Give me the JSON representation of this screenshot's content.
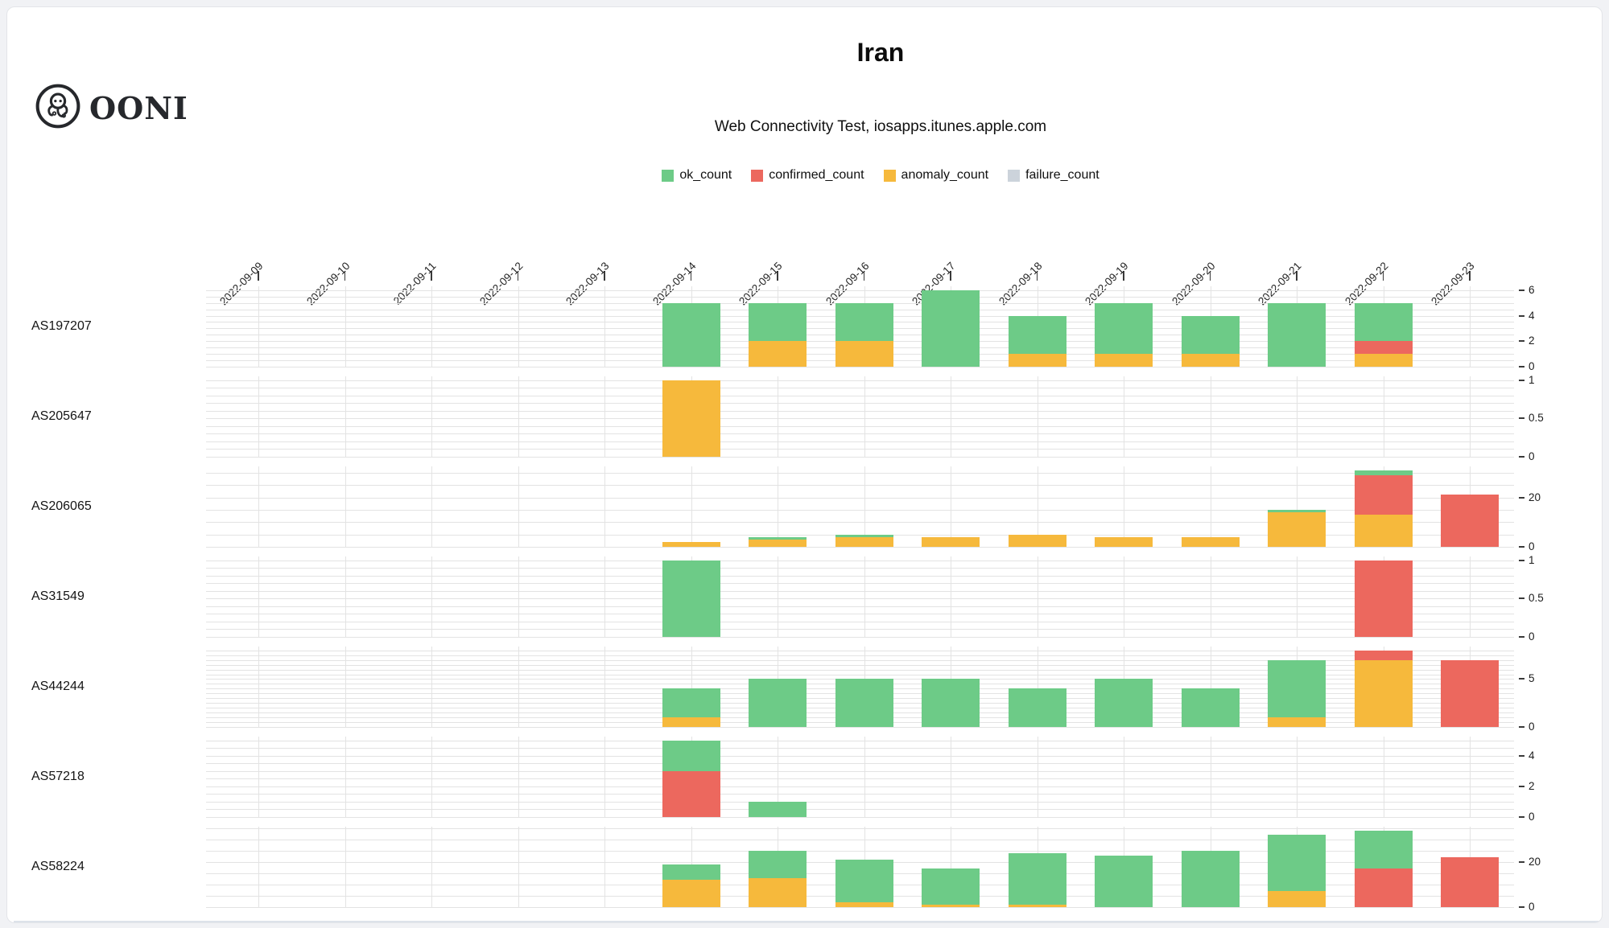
{
  "brand": {
    "logo_text": "OONI"
  },
  "chart_data": {
    "type": "bar",
    "stacked": true,
    "faceted": true,
    "title": "Iran",
    "subtitle": "Web Connectivity Test, iosapps.itunes.apple.com",
    "legend_position": "top-center",
    "grid": true,
    "colors": {
      "ok": "#6dcb87",
      "confirmed": "#ec685e",
      "anomaly": "#f6b93c",
      "failure": "#ccd3db"
    },
    "legend": [
      {
        "key": "ok",
        "label": "ok_count",
        "color": "#6dcb87"
      },
      {
        "key": "confirmed",
        "label": "confirmed_count",
        "color": "#ec685e"
      },
      {
        "key": "anomaly",
        "label": "anomaly_count",
        "color": "#f6b93c"
      },
      {
        "key": "failure",
        "label": "failure_count",
        "color": "#ccd3db"
      }
    ],
    "stack_order": [
      "anomaly",
      "confirmed",
      "ok",
      "failure"
    ],
    "x_categories": [
      "2022-09-09",
      "2022-09-10",
      "2022-09-11",
      "2022-09-12",
      "2022-09-13",
      "2022-09-14",
      "2022-09-15",
      "2022-09-16",
      "2022-09-17",
      "2022-09-18",
      "2022-09-19",
      "2022-09-20",
      "2022-09-21",
      "2022-09-22",
      "2022-09-23"
    ],
    "facets": [
      {
        "label": "AS197207",
        "y_ticks": [
          0,
          2,
          4,
          6
        ],
        "y_max": 6.3,
        "grid_step": 0.5,
        "bars": [
          {
            "date": "2022-09-14",
            "ok": 5
          },
          {
            "date": "2022-09-15",
            "anomaly": 2,
            "ok": 3
          },
          {
            "date": "2022-09-16",
            "anomaly": 2,
            "ok": 3
          },
          {
            "date": "2022-09-17",
            "ok": 6
          },
          {
            "date": "2022-09-18",
            "anomaly": 1,
            "ok": 3
          },
          {
            "date": "2022-09-19",
            "anomaly": 1,
            "ok": 4
          },
          {
            "date": "2022-09-20",
            "anomaly": 1,
            "ok": 3
          },
          {
            "date": "2022-09-21",
            "ok": 5
          },
          {
            "date": "2022-09-22",
            "anomaly": 1,
            "confirmed": 1,
            "ok": 3
          }
        ]
      },
      {
        "label": "AS205647",
        "y_ticks": [
          0,
          0.5,
          1
        ],
        "y_max": 1.05,
        "grid_step": 0.1,
        "bars": [
          {
            "date": "2022-09-14",
            "anomaly": 1
          }
        ]
      },
      {
        "label": "AS206065",
        "y_ticks": [
          0,
          20
        ],
        "y_max": 32.55,
        "grid_step": 5,
        "bars": [
          {
            "date": "2022-09-14",
            "anomaly": 2
          },
          {
            "date": "2022-09-15",
            "anomaly": 3,
            "ok": 1
          },
          {
            "date": "2022-09-16",
            "anomaly": 4,
            "ok": 1
          },
          {
            "date": "2022-09-17",
            "anomaly": 4
          },
          {
            "date": "2022-09-18",
            "anomaly": 5
          },
          {
            "date": "2022-09-19",
            "anomaly": 4
          },
          {
            "date": "2022-09-20",
            "anomaly": 4
          },
          {
            "date": "2022-09-21",
            "anomaly": 14,
            "ok": 1
          },
          {
            "date": "2022-09-22",
            "anomaly": 13,
            "confirmed": 16,
            "ok": 2
          },
          {
            "date": "2022-09-23",
            "confirmed": 21
          }
        ]
      },
      {
        "label": "AS31549",
        "y_ticks": [
          0,
          0.5,
          1
        ],
        "y_max": 1.05,
        "grid_step": 0.1,
        "bars": [
          {
            "date": "2022-09-14",
            "ok": 1
          },
          {
            "date": "2022-09-22",
            "confirmed": 1
          }
        ]
      },
      {
        "label": "AS44244",
        "y_ticks": [
          0,
          5
        ],
        "y_max": 8.4,
        "grid_step": 0.5,
        "bars": [
          {
            "date": "2022-09-14",
            "anomaly": 1,
            "ok": 3
          },
          {
            "date": "2022-09-15",
            "ok": 5
          },
          {
            "date": "2022-09-16",
            "ok": 5
          },
          {
            "date": "2022-09-17",
            "ok": 5
          },
          {
            "date": "2022-09-18",
            "ok": 4
          },
          {
            "date": "2022-09-19",
            "ok": 5
          },
          {
            "date": "2022-09-20",
            "ok": 4
          },
          {
            "date": "2022-09-21",
            "anomaly": 1,
            "ok": 6
          },
          {
            "date": "2022-09-22",
            "anomaly": 7,
            "confirmed": 1
          },
          {
            "date": "2022-09-23",
            "confirmed": 7
          }
        ]
      },
      {
        "label": "AS57218",
        "y_ticks": [
          0,
          2,
          4
        ],
        "y_max": 5.25,
        "grid_step": 0.5,
        "bars": [
          {
            "date": "2022-09-14",
            "confirmed": 3,
            "ok": 2
          },
          {
            "date": "2022-09-15",
            "ok": 1
          }
        ]
      },
      {
        "label": "AS58224",
        "y_ticks": [
          0,
          20
        ],
        "y_max": 35.7,
        "grid_step": 5,
        "bars": [
          {
            "date": "2022-09-14",
            "anomaly": 12,
            "ok": 7
          },
          {
            "date": "2022-09-15",
            "anomaly": 13,
            "ok": 12
          },
          {
            "date": "2022-09-16",
            "anomaly": 2,
            "ok": 19
          },
          {
            "date": "2022-09-17",
            "anomaly": 1,
            "ok": 16
          },
          {
            "date": "2022-09-18",
            "anomaly": 1,
            "ok": 23
          },
          {
            "date": "2022-09-19",
            "ok": 23
          },
          {
            "date": "2022-09-20",
            "ok": 25
          },
          {
            "date": "2022-09-21",
            "anomaly": 7,
            "ok": 25
          },
          {
            "date": "2022-09-22",
            "confirmed": 17,
            "ok": 17
          },
          {
            "date": "2022-09-23",
            "confirmed": 22
          }
        ]
      }
    ]
  }
}
